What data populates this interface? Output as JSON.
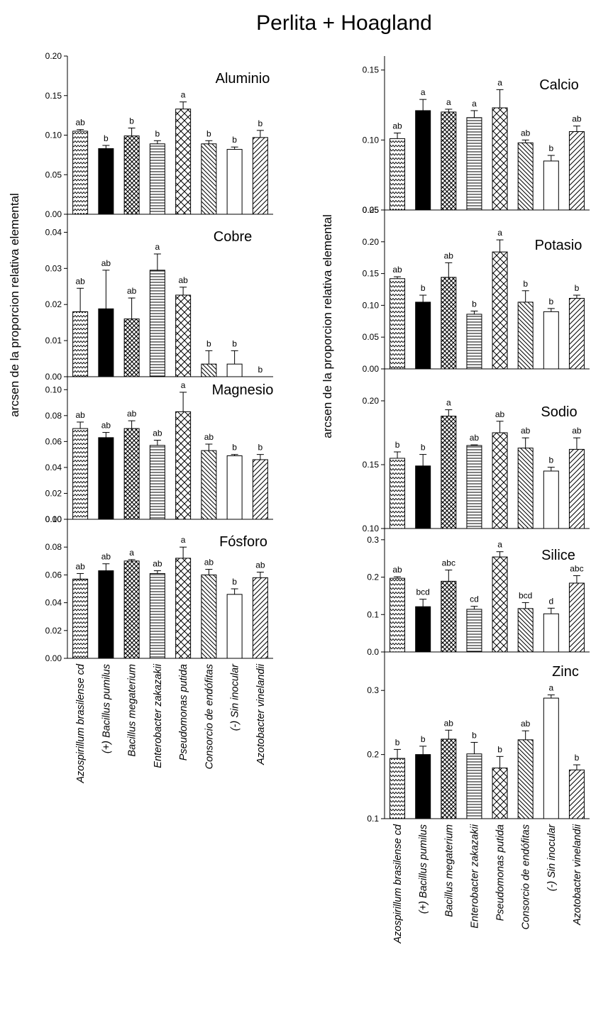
{
  "figure": {
    "title": "Perlita + Hoagland",
    "left_ylabel": "arcsen de la proporcion relativa elemental",
    "right_ylabel": "arcsen de la proporcion relativa elemental"
  },
  "categories": [
    "Azospirillum brasilense cd",
    "(+) Bacillus pumilus",
    "Bacillus megaterium",
    "Enterobacter zakazakii",
    "Pseudomonas putida",
    "Consorcio de endófitas",
    "(-) Sin inocular",
    "Azotobacter vinelandii"
  ],
  "fill_patterns": [
    "zigzag",
    "solid",
    "dots",
    "horizontal",
    "crosshatch",
    "diag-back",
    "empty",
    "diag-fwd"
  ],
  "chart_data": [
    {
      "type": "bar",
      "column": "left",
      "title": "Aluminio",
      "ylim": [
        0,
        0.2
      ],
      "ticks": [
        "0.00",
        "0.05",
        "0.10",
        "0.15",
        "0.20"
      ],
      "values": [
        0.105,
        0.083,
        0.099,
        0.089,
        0.133,
        0.089,
        0.082,
        0.097
      ],
      "errors": [
        0.002,
        0.004,
        0.01,
        0.004,
        0.009,
        0.004,
        0.003,
        0.009
      ],
      "labels": [
        "ab",
        "b",
        "b",
        "b",
        "a",
        "b",
        "b",
        "b"
      ]
    },
    {
      "type": "bar",
      "column": "left",
      "title": "Cobre",
      "ylim": [
        0,
        0.045
      ],
      "ticks": [
        "0.00",
        "0.01",
        "0.02",
        "0.03",
        "0.04"
      ],
      "values": [
        0.018,
        0.0188,
        0.016,
        0.0295,
        0.0226,
        0.0035,
        0.0035,
        0.0
      ],
      "errors": [
        0.0065,
        0.0107,
        0.0058,
        0.0045,
        0.0022,
        0.0037,
        0.0037,
        0.0
      ],
      "labels": [
        "ab",
        "ab",
        "ab",
        "a",
        "ab",
        "b",
        "b",
        "b"
      ]
    },
    {
      "type": "bar",
      "column": "left",
      "title": "Magnesio",
      "ylim": [
        0,
        0.11
      ],
      "ticks": [
        "0.00",
        "0.02",
        "0.04",
        "0.06",
        "0.08",
        "0.10"
      ],
      "values": [
        0.07,
        0.063,
        0.07,
        0.057,
        0.083,
        0.053,
        0.049,
        0.046
      ],
      "errors": [
        0.005,
        0.004,
        0.006,
        0.004,
        0.015,
        0.005,
        0.001,
        0.004
      ],
      "labels": [
        "ab",
        "ab",
        "ab",
        "ab",
        "a",
        "ab",
        "b",
        "b"
      ]
    },
    {
      "type": "bar",
      "column": "left",
      "title": "Fósforo",
      "ylim": [
        0,
        0.1
      ],
      "ticks": [
        "0.00",
        "0.02",
        "0.04",
        "0.06",
        "0.08",
        "0.10"
      ],
      "values": [
        0.057,
        0.063,
        0.07,
        0.061,
        0.072,
        0.06,
        0.046,
        0.058
      ],
      "errors": [
        0.004,
        0.005,
        0.001,
        0.002,
        0.008,
        0.004,
        0.004,
        0.004
      ],
      "labels": [
        "ab",
        "ab",
        "a",
        "ab",
        "a",
        "ab",
        "b",
        "ab"
      ]
    },
    {
      "type": "bar",
      "column": "right",
      "title": "Calcio",
      "ylim": [
        0.05,
        0.16
      ],
      "ticks": [
        "0.05",
        "0.10",
        "0.15"
      ],
      "values": [
        0.101,
        0.121,
        0.12,
        0.116,
        0.123,
        0.098,
        0.085,
        0.106
      ],
      "errors": [
        0.004,
        0.008,
        0.002,
        0.005,
        0.013,
        0.002,
        0.004,
        0.004
      ],
      "labels": [
        "ab",
        "a",
        "a",
        "a",
        "a",
        "ab",
        "b",
        "ab"
      ]
    },
    {
      "type": "bar",
      "column": "right",
      "title": "Potasio",
      "ylim": [
        0,
        0.25
      ],
      "ticks": [
        "0.00",
        "0.05",
        "0.10",
        "0.15",
        "0.20",
        "0.25"
      ],
      "values": [
        0.142,
        0.105,
        0.144,
        0.086,
        0.184,
        0.105,
        0.09,
        0.111
      ],
      "errors": [
        0.003,
        0.011,
        0.023,
        0.005,
        0.019,
        0.018,
        0.005,
        0.005
      ],
      "labels": [
        "ab",
        "b",
        "ab",
        "b",
        "a",
        "b",
        "b",
        "b"
      ]
    },
    {
      "type": "bar",
      "column": "right",
      "title": "Sodio",
      "ylim": [
        0.1,
        0.225
      ],
      "ticks": [
        "0.10",
        "0.15",
        "0.20"
      ],
      "values": [
        0.155,
        0.149,
        0.188,
        0.165,
        0.175,
        0.163,
        0.145,
        0.162
      ],
      "errors": [
        0.005,
        0.009,
        0.005,
        0.0005,
        0.009,
        0.008,
        0.003,
        0.009
      ],
      "labels": [
        "b",
        "b",
        "a",
        "ab",
        "ab",
        "ab",
        "b",
        "ab"
      ]
    },
    {
      "type": "bar",
      "column": "right",
      "title": "Silice",
      "ylim": [
        0,
        0.33
      ],
      "ticks": [
        "0.0",
        "0.1",
        "0.2",
        "0.3"
      ],
      "values": [
        0.197,
        0.121,
        0.189,
        0.114,
        0.254,
        0.116,
        0.102,
        0.184
      ],
      "errors": [
        0.004,
        0.02,
        0.03,
        0.008,
        0.014,
        0.016,
        0.015,
        0.02
      ],
      "labels": [
        "ab",
        "bcd",
        "abc",
        "cd",
        "a",
        "bcd",
        "d",
        "abc"
      ]
    },
    {
      "type": "bar",
      "column": "right",
      "title": "Zinc",
      "ylim": [
        0.1,
        0.36
      ],
      "ticks": [
        "0.1",
        "0.2",
        "0.3"
      ],
      "values": [
        0.194,
        0.2,
        0.224,
        0.201,
        0.179,
        0.223,
        0.288,
        0.176
      ],
      "errors": [
        0.014,
        0.013,
        0.014,
        0.018,
        0.018,
        0.014,
        0.005,
        0.008
      ],
      "labels": [
        "b",
        "b",
        "ab",
        "b",
        "b",
        "ab",
        "a",
        "b"
      ]
    }
  ]
}
